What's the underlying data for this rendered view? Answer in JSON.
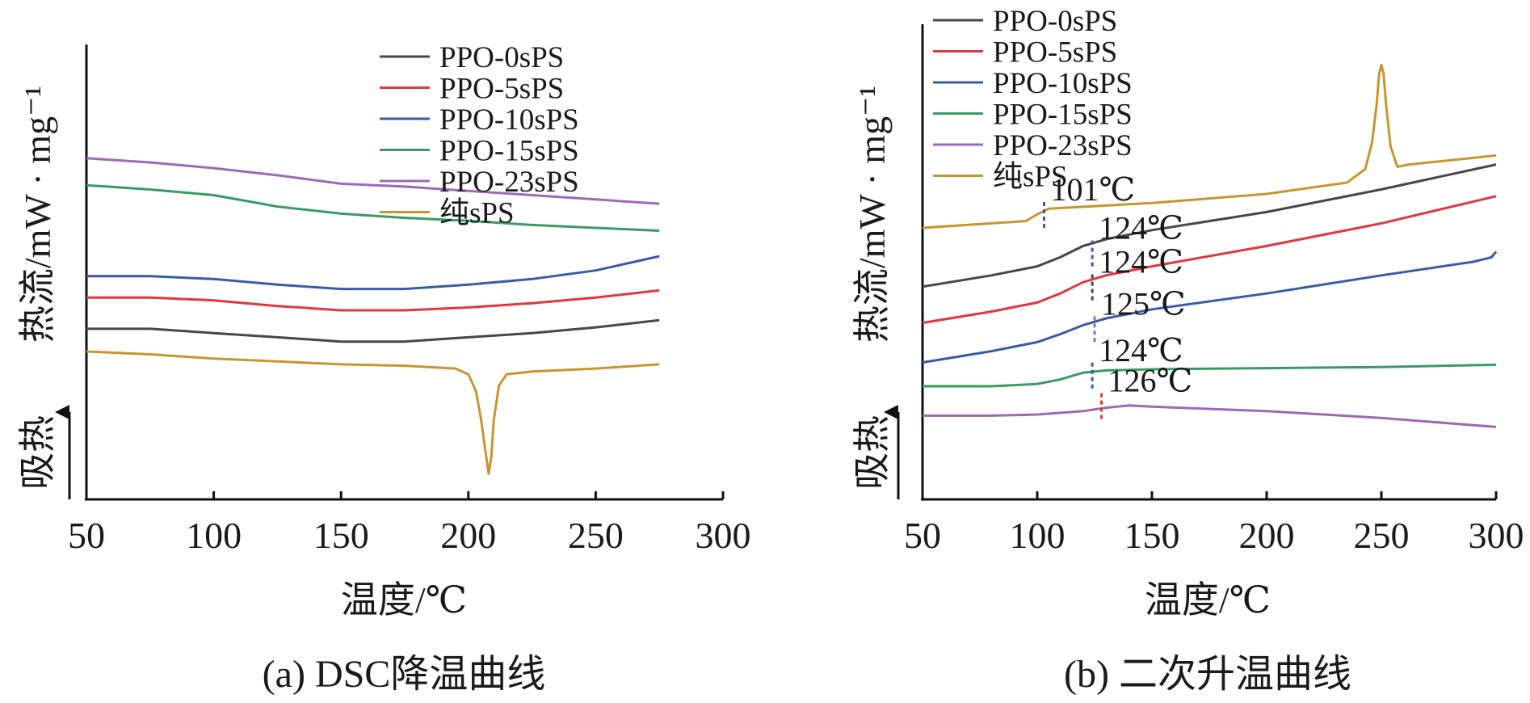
{
  "chart_data": [
    {
      "type": "line",
      "caption": "(a) DSC降温曲线",
      "xlabel": "温度/℃",
      "ylabel": "热流/mW · mg⁻¹",
      "direction_label": "吸热",
      "xlim": [
        50,
        300
      ],
      "xticks": [
        "50",
        "100",
        "150",
        "200",
        "250",
        "300"
      ],
      "yticks": false,
      "grid": false,
      "legend_position": "top-right",
      "series": [
        {
          "name": "PPO-0sPS",
          "color": "#4a4547",
          "x": [
            50,
            75,
            100,
            125,
            150,
            175,
            200,
            225,
            250,
            275
          ],
          "y": [
            4.0,
            4.0,
            3.85,
            3.7,
            3.55,
            3.55,
            3.7,
            3.85,
            4.05,
            4.3
          ]
        },
        {
          "name": "PPO-5sPS",
          "color": "#e0383e",
          "x": [
            50,
            75,
            100,
            125,
            150,
            175,
            200,
            225,
            250,
            275
          ],
          "y": [
            5.1,
            5.1,
            5.0,
            4.8,
            4.65,
            4.65,
            4.75,
            4.9,
            5.1,
            5.35
          ]
        },
        {
          "name": "PPO-10sPS",
          "color": "#3b5ba8",
          "x": [
            50,
            75,
            100,
            125,
            150,
            175,
            200,
            225,
            250,
            275
          ],
          "y": [
            5.85,
            5.85,
            5.75,
            5.55,
            5.4,
            5.4,
            5.55,
            5.75,
            6.05,
            6.55
          ]
        },
        {
          "name": "PPO-15sPS",
          "color": "#3a9b63",
          "x": [
            50,
            75,
            100,
            125,
            150,
            175,
            200,
            225,
            250,
            275
          ],
          "y": [
            9.05,
            8.9,
            8.7,
            8.3,
            8.05,
            7.9,
            7.8,
            7.65,
            7.55,
            7.45
          ]
        },
        {
          "name": "PPO-23sPS",
          "color": "#9b6bb5",
          "x": [
            50,
            75,
            100,
            125,
            150,
            175,
            200,
            225,
            250,
            275
          ],
          "y": [
            10.0,
            9.85,
            9.65,
            9.4,
            9.1,
            9.0,
            8.85,
            8.7,
            8.55,
            8.4
          ]
        },
        {
          "name": "纯sPS",
          "color": "#c8962e",
          "x": [
            50,
            75,
            100,
            125,
            150,
            175,
            195,
            200,
            203,
            205,
            207,
            208,
            209,
            210,
            212,
            215,
            225,
            250,
            275
          ],
          "y": [
            3.2,
            3.1,
            2.95,
            2.85,
            2.75,
            2.7,
            2.6,
            2.4,
            1.8,
            0.8,
            -0.5,
            -1.1,
            -0.5,
            0.8,
            2.0,
            2.4,
            2.5,
            2.6,
            2.75
          ]
        }
      ]
    },
    {
      "type": "line",
      "caption": "(b) 二次升温曲线",
      "xlabel": "温度/℃",
      "ylabel": "热流/mW · mg⁻¹",
      "direction_label": "吸热",
      "xlim": [
        50,
        300
      ],
      "xticks": [
        "50",
        "100",
        "150",
        "200",
        "250",
        "300"
      ],
      "yticks": false,
      "grid": false,
      "legend_position": "top-left",
      "series": [
        {
          "name": "PPO-0sPS",
          "color": "#4a4547",
          "x": [
            50,
            80,
            100,
            110,
            120,
            130,
            150,
            200,
            250,
            300
          ],
          "y": [
            7.4,
            7.9,
            8.3,
            8.7,
            9.2,
            9.5,
            9.9,
            10.7,
            11.7,
            12.8
          ]
        },
        {
          "name": "PPO-5sPS",
          "color": "#e0383e",
          "x": [
            50,
            80,
            100,
            110,
            120,
            130,
            150,
            200,
            250,
            300
          ],
          "y": [
            5.8,
            6.3,
            6.7,
            7.1,
            7.6,
            7.9,
            8.3,
            9.2,
            10.2,
            11.4
          ]
        },
        {
          "name": "PPO-10sPS",
          "color": "#3b5ba8",
          "x": [
            50,
            80,
            100,
            110,
            120,
            130,
            150,
            200,
            250,
            290,
            298,
            300
          ],
          "y": [
            4.05,
            4.55,
            4.95,
            5.3,
            5.7,
            6.0,
            6.4,
            7.1,
            7.9,
            8.5,
            8.7,
            8.95
          ]
        },
        {
          "name": "PPO-15sPS",
          "color": "#3a9b63",
          "x": [
            50,
            80,
            100,
            110,
            120,
            130,
            150,
            200,
            250,
            300
          ],
          "y": [
            3.0,
            3.0,
            3.1,
            3.3,
            3.6,
            3.7,
            3.75,
            3.8,
            3.85,
            3.95
          ]
        },
        {
          "name": "PPO-23sPS",
          "color": "#9b6bb5",
          "x": [
            50,
            80,
            100,
            120,
            130,
            140,
            150,
            200,
            250,
            300
          ],
          "y": [
            1.7,
            1.7,
            1.75,
            1.9,
            2.05,
            2.15,
            2.1,
            1.9,
            1.6,
            1.2
          ]
        },
        {
          "name": "纯sPS",
          "color": "#c8962e",
          "x": [
            50,
            80,
            95,
            100,
            105,
            150,
            200,
            235,
            243,
            246,
            248,
            249,
            250,
            251,
            252,
            254,
            257,
            262,
            300
          ],
          "y": [
            10.0,
            10.2,
            10.3,
            10.6,
            10.85,
            11.1,
            11.5,
            12.0,
            12.6,
            13.8,
            15.5,
            16.8,
            17.2,
            16.8,
            15.5,
            13.6,
            12.7,
            12.8,
            13.2
          ]
        }
      ],
      "annotations": [
        {
          "text": "101℃",
          "x": 103,
          "y": 10.5,
          "color": "#3b5ba8"
        },
        {
          "text": "124℃",
          "x": 124,
          "y": 8.8,
          "color": "#3b5ba8"
        },
        {
          "text": "124℃",
          "x": 124,
          "y": 7.3,
          "color": "#4a4547"
        },
        {
          "text": "125℃",
          "x": 125,
          "y": 5.45,
          "color": "#9b6bb5"
        },
        {
          "text": "124℃",
          "x": 124,
          "y": 3.4,
          "color": "#3b5ba8"
        },
        {
          "text": "126℃",
          "x": 128,
          "y": 2.05,
          "color": "#e0383e"
        }
      ]
    }
  ]
}
